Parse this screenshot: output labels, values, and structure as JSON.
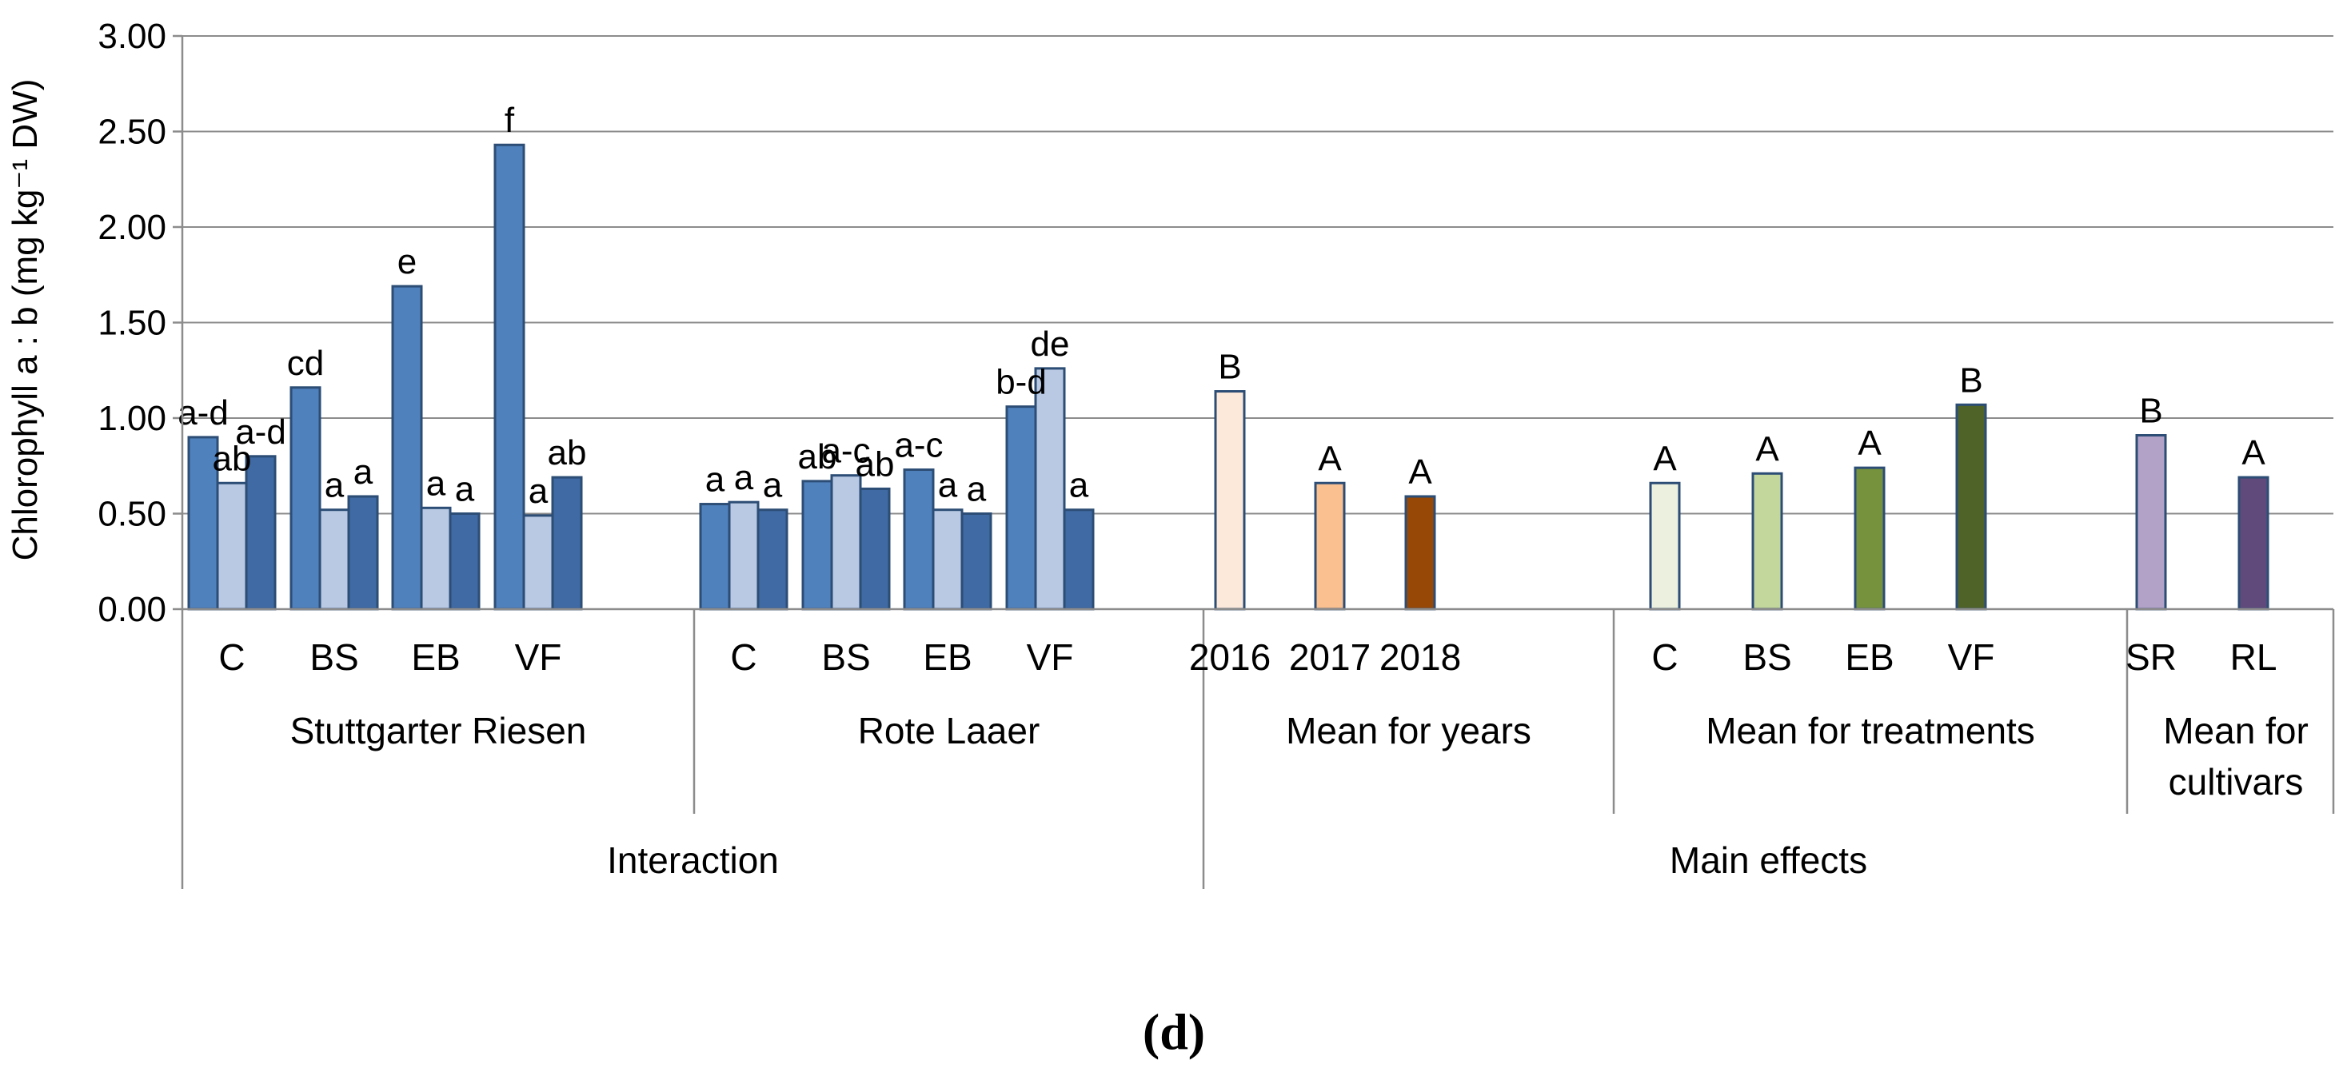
{
  "chart_data": {
    "type": "bar",
    "panel_label": "d",
    "ylabel": "Chlorophyll a : b (mg kg⁻¹ DW)",
    "ylim": [
      0,
      3.0
    ],
    "yticks": [
      "0.00",
      "0.50",
      "1.00",
      "1.50",
      "2.00",
      "2.50",
      "3.00"
    ],
    "grid": true,
    "colors": {
      "y2016": "#4f81bd",
      "y2017": "#b9c9e4",
      "y2018": "#3f6aa3",
      "mean2016": "#fde9d9",
      "mean2017": "#fac090",
      "mean2018": "#974706",
      "meanC": "#ebf1de",
      "meanBS": "#c3d69b",
      "meanEB": "#76923c",
      "meanVF": "#4f6228",
      "meanSR": "#b3a2c7",
      "meanRL": "#604a7b",
      "border": "#2c4d75"
    },
    "top_groups": [
      {
        "label": "Interaction"
      },
      {
        "label": "Main effects"
      }
    ],
    "mid_groups": [
      {
        "label": "Stuttgarter Riesen"
      },
      {
        "label": "Rote Laaer"
      },
      {
        "label": "Mean for years"
      },
      {
        "label": "Mean for treatments"
      },
      {
        "label": "Mean for",
        "label2": "cultivars"
      }
    ],
    "categories": [
      {
        "label": "C",
        "bars": [
          {
            "v": 0.9,
            "c": "y2016",
            "t": "a-d"
          },
          {
            "v": 0.66,
            "c": "y2017",
            "t": "ab"
          },
          {
            "v": 0.8,
            "c": "y2018",
            "t": "a-d"
          }
        ]
      },
      {
        "label": "BS",
        "bars": [
          {
            "v": 1.16,
            "c": "y2016",
            "t": "cd"
          },
          {
            "v": 0.52,
            "c": "y2017",
            "t": "a"
          },
          {
            "v": 0.59,
            "c": "y2018",
            "t": "a"
          }
        ]
      },
      {
        "label": "EB",
        "bars": [
          {
            "v": 1.69,
            "c": "y2016",
            "t": "e"
          },
          {
            "v": 0.53,
            "c": "y2017",
            "t": "a"
          },
          {
            "v": 0.5,
            "c": "y2018",
            "t": "a"
          }
        ]
      },
      {
        "label": "VF",
        "bars": [
          {
            "v": 2.43,
            "c": "y2016",
            "t": "f"
          },
          {
            "v": 0.49,
            "c": "y2017",
            "t": "a"
          },
          {
            "v": 0.69,
            "c": "y2018",
            "t": "ab"
          }
        ]
      },
      {
        "label": "C",
        "bars": [
          {
            "v": 0.55,
            "c": "y2016",
            "t": "a"
          },
          {
            "v": 0.56,
            "c": "y2017",
            "t": "a"
          },
          {
            "v": 0.52,
            "c": "y2018",
            "t": "a"
          }
        ]
      },
      {
        "label": "BS",
        "bars": [
          {
            "v": 0.67,
            "c": "y2016",
            "t": "ab"
          },
          {
            "v": 0.7,
            "c": "y2017",
            "t": "a-c"
          },
          {
            "v": 0.63,
            "c": "y2018",
            "t": "ab"
          }
        ]
      },
      {
        "label": "EB",
        "bars": [
          {
            "v": 0.73,
            "c": "y2016",
            "t": "a-c"
          },
          {
            "v": 0.52,
            "c": "y2017",
            "t": "a"
          },
          {
            "v": 0.5,
            "c": "y2018",
            "t": "a"
          }
        ]
      },
      {
        "label": "VF",
        "bars": [
          {
            "v": 1.06,
            "c": "y2016",
            "t": "b-d"
          },
          {
            "v": 1.26,
            "c": "y2017",
            "t": "de"
          },
          {
            "v": 0.52,
            "c": "y2018",
            "t": "a"
          }
        ]
      },
      {
        "label": "2016",
        "bars": [
          {
            "v": 1.14,
            "c": "mean2016",
            "t": "B"
          }
        ]
      },
      {
        "label": "2017",
        "bars": [
          {
            "v": 0.66,
            "c": "mean2017",
            "t": "A"
          }
        ]
      },
      {
        "label": "2018",
        "bars": [
          {
            "v": 0.59,
            "c": "mean2018",
            "t": "A"
          }
        ]
      },
      {
        "label": "C",
        "bars": [
          {
            "v": 0.66,
            "c": "meanC",
            "t": "A"
          }
        ]
      },
      {
        "label": "BS",
        "bars": [
          {
            "v": 0.71,
            "c": "meanBS",
            "t": "A"
          }
        ]
      },
      {
        "label": "EB",
        "bars": [
          {
            "v": 0.74,
            "c": "meanEB",
            "t": "A"
          }
        ]
      },
      {
        "label": "VF",
        "bars": [
          {
            "v": 1.07,
            "c": "meanVF",
            "t": "B"
          }
        ]
      },
      {
        "label": "SR",
        "bars": [
          {
            "v": 0.91,
            "c": "meanSR",
            "t": "B"
          }
        ]
      },
      {
        "label": "RL",
        "bars": [
          {
            "v": 0.69,
            "c": "meanRL",
            "t": "A"
          }
        ]
      }
    ]
  }
}
